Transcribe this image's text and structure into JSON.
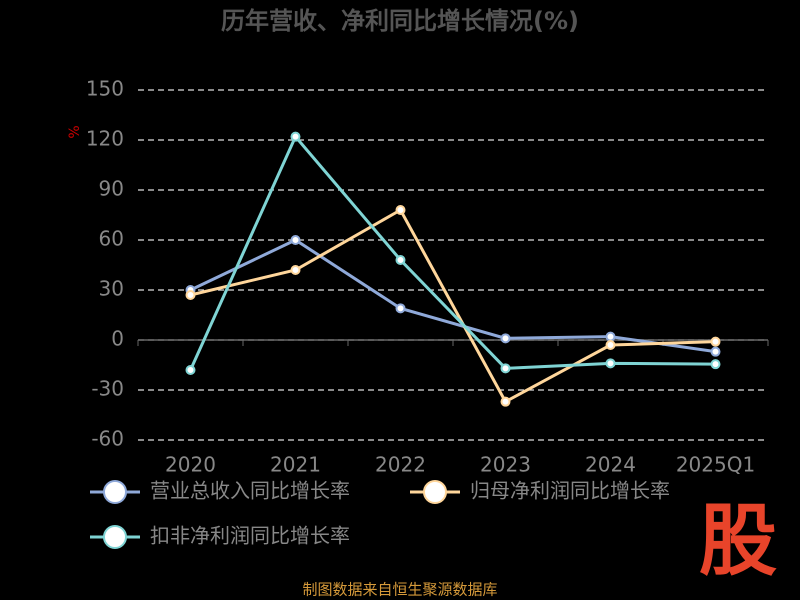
{
  "chart_data": {
    "type": "line",
    "title": "历年营收、净利同比增长情况(%)",
    "y_label": "%",
    "categories": [
      "2020",
      "2021",
      "2022",
      "2023",
      "2024",
      "2025Q1"
    ],
    "series": [
      {
        "name": "营业总收入同比增长率",
        "color": "#8fa9d9",
        "values": [
          30,
          60,
          19,
          1,
          2,
          -7
        ]
      },
      {
        "name": "归母净利润同比增长率",
        "color": "#ffd69b",
        "values": [
          27,
          42,
          78,
          -37,
          -3,
          -1
        ]
      },
      {
        "name": "扣非净利润同比增长率",
        "color": "#7fd4d4",
        "values": [
          -18,
          122,
          48,
          -17,
          -14,
          -14.5
        ]
      }
    ],
    "ylim": [
      -60,
      150
    ],
    "yticks": [
      -60,
      -30,
      0,
      30,
      60,
      90,
      120,
      150
    ],
    "grid": true,
    "source": "制图数据来自恒生聚源数据库",
    "watermark": "股"
  }
}
